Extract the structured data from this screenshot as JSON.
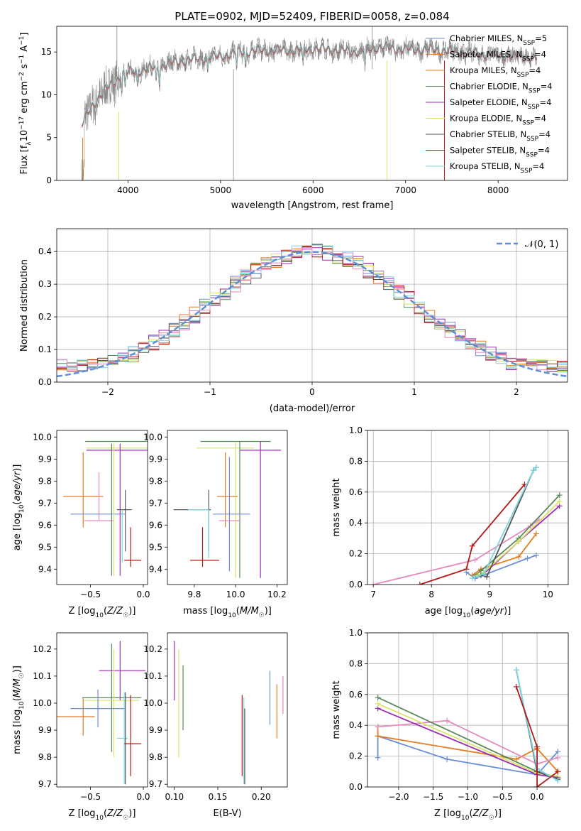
{
  "colors": {
    "chabrier_miles": "#6b8fd6",
    "salpeter_miles": "#e07b2c",
    "kroupa_miles": "#e67c1c",
    "chabrier_elodie": "#5a8a5a",
    "salpeter_elodie": "#9b2fb4",
    "kroupa_elodie": "#d9e36a",
    "chabrier_stelib": "#555555",
    "salpeter_stelib": "#b01a1a",
    "kroupa_stelib": "#7ed6e0",
    "pink": "#e58abf",
    "data": "#888888",
    "gauss": "#5b8fd6",
    "grid": "#b0b0b0"
  },
  "chart_data": [
    {
      "id": "spectrum",
      "type": "line",
      "title": "PLATE=0902, MJD=52409, FIBERID=0058, z=0.084",
      "xlabel": "wavelength [Angstrom, rest frame]",
      "ylabel": "Flux [f_λ10^-17 erg cm^-2 s^-1 A^-1]",
      "xlim": [
        3230,
        8750
      ],
      "ylim": [
        0,
        18
      ],
      "xticks": [
        4000,
        5000,
        6000,
        7000,
        8000
      ],
      "yticks": [
        0,
        5,
        10,
        15
      ],
      "grid": false,
      "legend_position": "top-right",
      "legend": [
        {
          "label": "Chabrier MILES, N_SSP=5",
          "color_key": "chabrier_miles"
        },
        {
          "label": "Salpeter MILES, N_SSP=4",
          "color_key": "salpeter_miles"
        },
        {
          "label": "Kroupa MILES, N_SSP=4",
          "color_key": "kroupa_miles"
        },
        {
          "label": "Chabrier ELODIE, N_SSP=4",
          "color_key": "chabrier_elodie"
        },
        {
          "label": "Salpeter ELODIE, N_SSP=4",
          "color_key": "salpeter_elodie"
        },
        {
          "label": "Kroupa ELODIE, N_SSP=4",
          "color_key": "kroupa_elodie"
        },
        {
          "label": "Chabrier STELIB, N_SSP=4",
          "color_key": "chabrier_stelib"
        },
        {
          "label": "Salpeter STELIB, N_SSP=4",
          "color_key": "salpeter_stelib"
        },
        {
          "label": "Kroupa STELIB, N_SSP=4",
          "color_key": "kroupa_stelib"
        }
      ],
      "continuum_points": [
        [
          3500,
          6.5
        ],
        [
          3600,
          8.5
        ],
        [
          3700,
          10
        ],
        [
          3800,
          11
        ],
        [
          3950,
          12.5
        ],
        [
          4100,
          12.8
        ],
        [
          4300,
          13.2
        ],
        [
          4500,
          13.8
        ],
        [
          4800,
          14.3
        ],
        [
          5000,
          14.5
        ],
        [
          5200,
          15
        ],
        [
          5500,
          15.2
        ],
        [
          5800,
          15.2
        ],
        [
          6000,
          15.4
        ],
        [
          6300,
          15.2
        ],
        [
          6500,
          15
        ],
        [
          6700,
          15.6
        ],
        [
          7000,
          15.3
        ],
        [
          7200,
          15.3
        ],
        [
          7400,
          15.2
        ],
        [
          7800,
          14.8
        ],
        [
          8200,
          14.5
        ],
        [
          8400,
          14.3
        ]
      ]
    },
    {
      "id": "residuals",
      "type": "histogram",
      "xlabel": "(data-model)/error",
      "ylabel": "Normed distribution",
      "xlim": [
        -2.5,
        2.5
      ],
      "ylim": [
        0,
        0.47
      ],
      "xticks": [
        -2,
        -1,
        0,
        1,
        2
      ],
      "yticks": [
        0.0,
        0.1,
        0.2,
        0.3,
        0.4
      ],
      "grid": true,
      "legend_position": "top-right",
      "gauss_label": "𝒩(0, 1)",
      "bin_width": 0.1,
      "bin_start": -2.5
    },
    {
      "id": "age_vs_z",
      "type": "errorbar",
      "xlabel": "Z [log10(Z/Z☉)]",
      "ylabel": "age  [log10(age/yr)]",
      "xlim": [
        -0.82,
        0.04
      ],
      "ylim": [
        9.33,
        10.03
      ],
      "xticks": [
        -0.5,
        0.0
      ],
      "yticks": [
        9.4,
        9.5,
        9.6,
        9.7,
        9.8,
        9.9,
        10.0
      ],
      "grid": false,
      "points": [
        {
          "c": "chabrier_elodie",
          "x": -0.18,
          "xe": 0.37,
          "y": 9.98,
          "ye": 0.0
        },
        {
          "c": "salpeter_elodie",
          "x": -0.15,
          "xe": 0.39,
          "y": 9.94,
          "ye": 0.0
        },
        {
          "c": "kroupa_elodie",
          "x": -0.18,
          "xe": 0.36,
          "y": 9.95,
          "ye": 0.0
        },
        {
          "c": "kroupa_miles",
          "x": -0.57,
          "xe": 0.0,
          "y": 9.76,
          "ye": 0.17
        },
        {
          "c": "salpeter_miles",
          "x": -0.57,
          "xe": 0.19,
          "y": 9.73,
          "ye": 0.0
        },
        {
          "c": "pink",
          "x": -0.42,
          "xe": 0.14,
          "y": 9.62,
          "ye": 0.0
        },
        {
          "c": "pink",
          "x": -0.42,
          "xe": 0.0,
          "y": 9.73,
          "ye": 0.11
        },
        {
          "c": "chabrier_miles",
          "x": -0.43,
          "xe": 0.26,
          "y": 9.65,
          "ye": 0.0
        },
        {
          "c": "chabrier_elodie",
          "x": -0.3,
          "xe": 0.0,
          "y": 9.67,
          "ye": 0.3
        },
        {
          "c": "kroupa_elodie",
          "x": -0.28,
          "xe": 0.0,
          "y": 9.67,
          "ye": 0.3
        },
        {
          "c": "salpeter_elodie",
          "x": -0.22,
          "xe": 0.0,
          "y": 9.67,
          "ye": 0.3
        },
        {
          "c": "chabrier_stelib",
          "x": -0.18,
          "xe": 0.07,
          "y": 9.67,
          "ye": 0.0
        },
        {
          "c": "chabrier_stelib",
          "x": -0.17,
          "xe": 0.0,
          "y": 9.62,
          "ye": 0.14
        },
        {
          "c": "kroupa_stelib",
          "x": -0.2,
          "xe": 0.0,
          "y": 9.55,
          "ye": 0.12
        },
        {
          "c": "salpeter_stelib",
          "x": -0.1,
          "xe": 0.08,
          "y": 9.44,
          "ye": 0.0
        },
        {
          "c": "salpeter_stelib",
          "x": -0.12,
          "xe": 0.0,
          "y": 9.5,
          "ye": 0.09
        }
      ]
    },
    {
      "id": "age_vs_mass",
      "type": "errorbar",
      "xlabel": "mass [log10(M/M☉)]",
      "ylabel": "",
      "xlim": [
        9.67,
        10.25
      ],
      "ylim": [
        9.33,
        10.03
      ],
      "xticks": [
        9.8,
        10.0,
        10.2
      ],
      "yticks": [
        9.4,
        9.5,
        9.6,
        9.7,
        9.8,
        9.9,
        10.0
      ],
      "grid": false,
      "points": [
        {
          "c": "chabrier_elodie",
          "x": 10.0,
          "xe": 0.17,
          "y": 9.98,
          "ye": 0.0
        },
        {
          "c": "salpeter_elodie",
          "x": 10.12,
          "xe": 0.1,
          "y": 9.94,
          "ye": 0.0
        },
        {
          "c": "kroupa_elodie",
          "x": 9.95,
          "xe": 0.14,
          "y": 9.95,
          "ye": 0.0
        },
        {
          "c": "salpeter_elodie",
          "x": 10.12,
          "xe": 0.0,
          "y": 9.67,
          "ye": 0.31
        },
        {
          "c": "chabrier_elodie",
          "x": 10.02,
          "xe": 0.0,
          "y": 9.67,
          "ye": 0.31
        },
        {
          "c": "kroupa_elodie",
          "x": 10.0,
          "xe": 0.0,
          "y": 9.67,
          "ye": 0.31
        },
        {
          "c": "salpeter_miles",
          "x": 9.96,
          "xe": 0.05,
          "y": 9.73,
          "ye": 0.0
        },
        {
          "c": "kroupa_miles",
          "x": 9.95,
          "xe": 0.0,
          "y": 9.76,
          "ye": 0.17
        },
        {
          "c": "chabrier_miles",
          "x": 9.98,
          "xe": 0.09,
          "y": 9.65,
          "ye": 0.0
        },
        {
          "c": "chabrier_miles",
          "x": 9.97,
          "xe": 0.0,
          "y": 9.65,
          "ye": 0.26
        },
        {
          "c": "pink",
          "x": 9.97,
          "xe": 0.05,
          "y": 9.62,
          "ye": 0.0
        },
        {
          "c": "chabrier_stelib",
          "x": 9.79,
          "xe": 0.09,
          "y": 9.67,
          "ye": 0.0
        },
        {
          "c": "chabrier_stelib",
          "x": 9.87,
          "xe": 0.0,
          "y": 9.62,
          "ye": 0.14
        },
        {
          "c": "kroupa_stelib",
          "x": 9.87,
          "xe": 0.0,
          "y": 9.56,
          "ye": 0.11
        },
        {
          "c": "kroupa_stelib",
          "x": 9.82,
          "xe": 0.05,
          "y": 9.67,
          "ye": 0.0
        },
        {
          "c": "salpeter_stelib",
          "x": 9.85,
          "xe": 0.07,
          "y": 9.44,
          "ye": 0.0
        },
        {
          "c": "salpeter_stelib",
          "x": 9.84,
          "xe": 0.0,
          "y": 9.5,
          "ye": 0.09
        }
      ]
    },
    {
      "id": "weight_vs_age",
      "type": "line",
      "xlabel": "age  [log10(age/yr)]",
      "ylabel": "mass weight",
      "xlim": [
        6.9,
        10.35
      ],
      "ylim": [
        0,
        1
      ],
      "xticks": [
        7,
        8,
        9,
        10
      ],
      "yticks": [
        0.0,
        0.2,
        0.4,
        0.6,
        0.8,
        1.0
      ],
      "grid": true,
      "series": [
        {
          "c": "pink",
          "x": [
            7.0,
            8.75,
            9.7,
            9.85
          ],
          "y": [
            0.0,
            0.16,
            0.38,
            0.42
          ]
        },
        {
          "c": "salpeter_stelib",
          "x": [
            7.8,
            8.6,
            8.7,
            9.6
          ],
          "y": [
            0.0,
            0.1,
            0.25,
            0.65
          ]
        },
        {
          "c": "chabrier_miles",
          "x": [
            8.6,
            8.75,
            9.65,
            9.8
          ],
          "y": [
            0.08,
            0.04,
            0.17,
            0.19
          ]
        },
        {
          "c": "kroupa_miles",
          "x": [
            8.7,
            8.85,
            9.5,
            9.8
          ],
          "y": [
            0.06,
            0.1,
            0.18,
            0.33
          ]
        },
        {
          "c": "chabrier_elodie",
          "x": [
            8.75,
            8.85,
            9.5,
            10.2
          ],
          "y": [
            0.06,
            0.09,
            0.3,
            0.58
          ]
        },
        {
          "c": "salpeter_elodie",
          "x": [
            8.8,
            8.9,
            9.5,
            10.2
          ],
          "y": [
            0.06,
            0.07,
            0.28,
            0.51
          ]
        },
        {
          "c": "kroupa_elodie",
          "x": [
            8.8,
            8.9,
            9.5,
            10.2
          ],
          "y": [
            0.06,
            0.08,
            0.28,
            0.54
          ]
        },
        {
          "c": "chabrier_stelib",
          "x": [
            8.85,
            8.95,
            9.75,
            9.8
          ],
          "y": [
            0.06,
            0.05,
            0.74,
            0.76
          ]
        },
        {
          "c": "kroupa_stelib",
          "x": [
            8.7,
            8.9,
            9.75,
            9.8
          ],
          "y": [
            0.04,
            0.07,
            0.74,
            0.76
          ]
        }
      ]
    },
    {
      "id": "mass_vs_z",
      "type": "errorbar",
      "xlabel": "Z [log10(Z/Z☉)]",
      "ylabel": "mass [log10(M/M☉)]",
      "xlim": [
        -0.82,
        0.04
      ],
      "ylim": [
        9.69,
        10.26
      ],
      "xticks": [
        -0.5,
        0.0
      ],
      "yticks": [
        9.7,
        9.8,
        9.9,
        10.0,
        10.1,
        10.2
      ],
      "grid": false,
      "points": [
        {
          "c": "salpeter_elodie",
          "x": -0.22,
          "xe": 0.0,
          "y": 10.12,
          "ye": 0.11
        },
        {
          "c": "salpeter_elodie",
          "x": -0.2,
          "xe": 0.22,
          "y": 10.12,
          "ye": 0.0
        },
        {
          "c": "chabrier_elodie",
          "x": -0.3,
          "xe": 0.0,
          "y": 10.02,
          "ye": 0.2
        },
        {
          "c": "chabrier_elodie",
          "x": -0.3,
          "xe": 0.28,
          "y": 10.02,
          "ye": 0.0
        },
        {
          "c": "kroupa_elodie",
          "x": -0.28,
          "xe": 0.0,
          "y": 10.0,
          "ye": 0.2
        },
        {
          "c": "kroupa_elodie",
          "x": -0.3,
          "xe": 0.26,
          "y": 10.01,
          "ye": 0.0
        },
        {
          "c": "salpeter_miles",
          "x": -0.57,
          "xe": 0.0,
          "y": 9.95,
          "ye": 0.07
        },
        {
          "c": "salpeter_miles",
          "x": -0.65,
          "xe": 0.19,
          "y": 9.95,
          "ye": 0.0
        },
        {
          "c": "chabrier_miles",
          "x": -0.43,
          "xe": 0.26,
          "y": 9.98,
          "ye": 0.0
        },
        {
          "c": "chabrier_miles",
          "x": -0.43,
          "xe": 0.0,
          "y": 9.98,
          "ye": 0.07
        },
        {
          "c": "kroupa_stelib",
          "x": -0.2,
          "xe": 0.05,
          "y": 9.87,
          "ye": 0.0
        },
        {
          "c": "kroupa_stelib",
          "x": -0.18,
          "xe": 0.0,
          "y": 9.87,
          "ye": 0.17
        },
        {
          "c": "chabrier_stelib",
          "x": -0.17,
          "xe": 0.0,
          "y": 9.87,
          "ye": 0.17
        },
        {
          "c": "salpeter_stelib",
          "x": -0.12,
          "xe": 0.0,
          "y": 9.88,
          "ye": 0.15
        },
        {
          "c": "salpeter_stelib",
          "x": -0.1,
          "xe": 0.08,
          "y": 9.85,
          "ye": 0.0
        }
      ]
    },
    {
      "id": "mass_vs_ebv",
      "type": "errorbar",
      "xlabel": "E(B-V)",
      "ylabel": "",
      "xlim": [
        0.092,
        0.23
      ],
      "ylim": [
        9.69,
        10.26
      ],
      "xticks": [
        0.1,
        0.15,
        0.2
      ],
      "yticks": [
        9.7,
        9.8,
        9.9,
        10.0,
        10.1,
        10.2
      ],
      "grid": false,
      "points": [
        {
          "c": "salpeter_elodie",
          "x": 0.1,
          "xe": 0.0,
          "y": 10.12,
          "ye": 0.11
        },
        {
          "c": "kroupa_elodie",
          "x": 0.105,
          "xe": 0.0,
          "y": 10.0,
          "ye": 0.2
        },
        {
          "c": "chabrier_elodie",
          "x": 0.11,
          "xe": 0.0,
          "y": 10.02,
          "ye": 0.12
        },
        {
          "c": "salpeter_stelib",
          "x": 0.178,
          "xe": 0.0,
          "y": 9.88,
          "ye": 0.15
        },
        {
          "c": "kroupa_stelib",
          "x": 0.18,
          "xe": 0.0,
          "y": 9.86,
          "ye": 0.16
        },
        {
          "c": "chabrier_stelib",
          "x": 0.181,
          "xe": 0.0,
          "y": 9.84,
          "ye": 0.14
        },
        {
          "c": "chabrier_miles",
          "x": 0.21,
          "xe": 0.0,
          "y": 10.02,
          "ye": 0.1
        },
        {
          "c": "salpeter_miles",
          "x": 0.218,
          "xe": 0.0,
          "y": 9.97,
          "ye": 0.1
        },
        {
          "c": "pink",
          "x": 0.225,
          "xe": 0.0,
          "y": 10.03,
          "ye": 0.07
        }
      ]
    },
    {
      "id": "weight_vs_z",
      "type": "line",
      "xlabel": "Z [log10(Z/Z☉)]",
      "ylabel": "mass weight",
      "xlim": [
        -2.45,
        0.45
      ],
      "ylim": [
        0,
        1
      ],
      "xticks": [
        -2.0,
        -1.5,
        -1.0,
        -0.5,
        0.0
      ],
      "yticks": [
        0.0,
        0.2,
        0.4,
        0.6,
        0.8,
        1.0
      ],
      "grid": true,
      "series": [
        {
          "c": "chabrier_miles",
          "x": [
            -2.3,
            -2.3,
            -1.3,
            0.0,
            0.3
          ],
          "y": [
            0.19,
            0.33,
            0.18,
            0.08,
            0.23
          ]
        },
        {
          "c": "kroupa_miles",
          "x": [
            -2.3,
            -2.3,
            -0.3,
            0.0,
            0.3
          ],
          "y": [
            0.39,
            0.33,
            0.18,
            0.25,
            0.1
          ]
        },
        {
          "c": "pink",
          "x": [
            -2.3,
            -1.3,
            0.0,
            0.3
          ],
          "y": [
            0.39,
            0.43,
            0.15,
            0.19
          ]
        },
        {
          "c": "chabrier_elodie",
          "x": [
            -2.3,
            0.0,
            0.3
          ],
          "y": [
            0.58,
            0.1,
            0.06
          ]
        },
        {
          "c": "salpeter_elodie",
          "x": [
            -2.3,
            0.0,
            0.3
          ],
          "y": [
            0.51,
            0.08,
            0.06
          ]
        },
        {
          "c": "kroupa_elodie",
          "x": [
            -2.3,
            0.0,
            0.3
          ],
          "y": [
            0.54,
            0.09,
            0.07
          ]
        },
        {
          "c": "chabrier_stelib",
          "x": [
            -0.3,
            0.0,
            0.3
          ],
          "y": [
            0.76,
            0.1,
            0.05
          ]
        },
        {
          "c": "kroupa_stelib",
          "x": [
            -0.3,
            0.0,
            0.3
          ],
          "y": [
            0.76,
            0.12,
            0.04
          ]
        },
        {
          "c": "salpeter_stelib",
          "x": [
            -0.3,
            0.0,
            0.0,
            0.3
          ],
          "y": [
            0.65,
            0.26,
            0.0,
            0.1
          ]
        }
      ]
    }
  ]
}
